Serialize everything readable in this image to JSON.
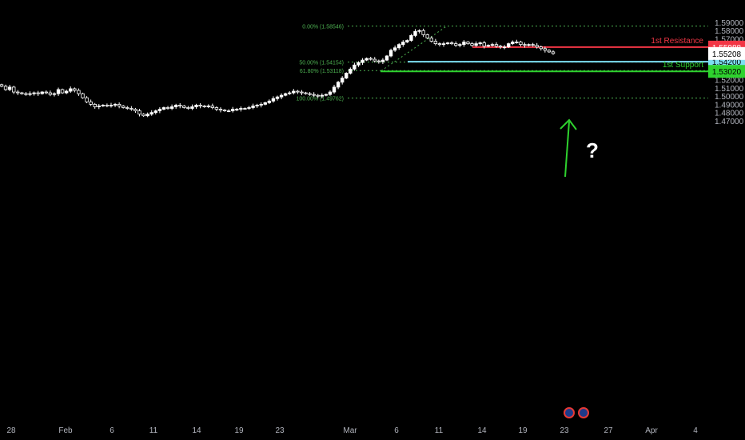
{
  "chart_data": {
    "type": "candlestick",
    "x_ticks": [
      "28",
      "Feb",
      "6",
      "11",
      "14",
      "19",
      "23",
      "Mar",
      "6",
      "11",
      "14",
      "19",
      "23",
      "27",
      "Apr",
      "4"
    ],
    "y_ticks": [
      "1.59000",
      "1.58000",
      "1.57000",
      "1.56000",
      "1.55000",
      "1.54000",
      "1.53000",
      "1.52000",
      "1.51000",
      "1.50000",
      "1.49000",
      "1.48000",
      "1.47000"
    ],
    "ylim": [
      1.467,
      1.594
    ],
    "close": [
      1.512,
      1.508,
      1.511,
      1.505,
      1.504,
      1.503,
      1.502,
      1.503,
      1.504,
      1.503,
      1.505,
      1.504,
      1.502,
      1.503,
      1.508,
      1.504,
      1.506,
      1.509,
      1.507,
      1.503,
      1.498,
      1.493,
      1.49,
      1.487,
      1.488,
      1.489,
      1.488,
      1.489,
      1.49,
      1.488,
      1.486,
      1.485,
      1.484,
      1.482,
      1.478,
      1.476,
      1.478,
      1.48,
      1.482,
      1.484,
      1.486,
      1.485,
      1.487,
      1.489,
      1.488,
      1.486,
      1.485,
      1.487,
      1.489,
      1.488,
      1.487,
      1.488,
      1.486,
      1.484,
      1.483,
      1.482,
      1.482,
      1.484,
      1.484,
      1.485,
      1.485,
      1.486,
      1.488,
      1.489,
      1.49,
      1.492,
      1.494,
      1.497,
      1.499,
      1.501,
      1.503,
      1.504,
      1.506,
      1.505,
      1.504,
      1.503,
      1.502,
      1.501,
      1.5,
      1.501,
      1.502,
      1.505,
      1.511,
      1.517,
      1.522,
      1.528,
      1.533,
      1.538,
      1.541,
      1.544,
      1.546,
      1.545,
      1.543,
      1.542,
      1.544,
      1.549,
      1.556,
      1.559,
      1.563,
      1.566,
      1.568,
      1.574,
      1.579,
      1.58,
      1.575,
      1.571,
      1.567,
      1.564,
      1.563,
      1.564,
      1.565,
      1.564,
      1.562,
      1.563,
      1.566,
      1.564,
      1.562,
      1.564,
      1.565,
      1.561,
      1.562,
      1.563,
      1.561,
      1.56,
      1.56,
      1.564,
      1.566,
      1.566,
      1.563,
      1.562,
      1.563,
      1.562,
      1.56,
      1.558,
      1.556,
      1.554,
      1.552
    ],
    "last_price": "1.55208",
    "levels": [
      {
        "label": "1st Resistance",
        "price": 1.55988,
        "price_label": "1.55988",
        "color": "#f23645"
      },
      {
        "label": "",
        "price": 1.542,
        "price_label": "1.54200",
        "color": "#7ddff2"
      },
      {
        "label": "1st Support",
        "price": 1.5302,
        "price_label": "1.53020",
        "color": "#2ed22e"
      }
    ],
    "fib_levels": [
      {
        "label": "0.00% (1.58546)",
        "price": 1.58546
      },
      {
        "label": "50.00% (1.54154)",
        "price": 1.54154
      },
      {
        "label": "61.80% (1.53118)",
        "price": 1.53118
      },
      {
        "label": "100.00% (1.49762)",
        "price": 1.49762
      }
    ],
    "annotation": "?",
    "colors": {
      "up": "#ffffff",
      "down": "#ffffff",
      "fib": "#4caf50",
      "arrow": "#2ed22e",
      "axis_text": "#b2b5be"
    }
  }
}
